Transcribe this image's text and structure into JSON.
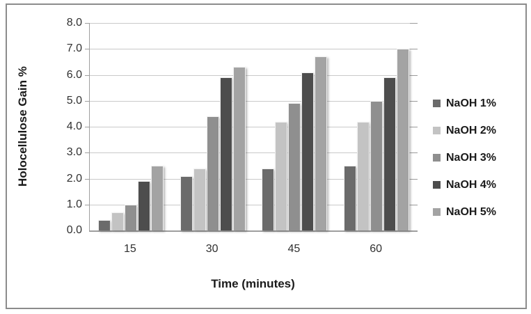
{
  "chart_data": {
    "type": "bar",
    "title": "",
    "categories": [
      "15",
      "30",
      "45",
      "60"
    ],
    "series": [
      {
        "name": "NaOH 1%",
        "color": "#6B6B6B",
        "values": [
          0.4,
          2.1,
          2.4,
          2.5
        ]
      },
      {
        "name": "NaOH 2%",
        "color": "#C3C3C3",
        "values": [
          0.7,
          2.4,
          4.2,
          4.2
        ]
      },
      {
        "name": "NaOH 3%",
        "color": "#8F8F8F",
        "values": [
          1.0,
          4.4,
          4.9,
          5.0
        ]
      },
      {
        "name": "NaOH 4%",
        "color": "#4D4D4D",
        "values": [
          1.9,
          5.9,
          6.1,
          5.9
        ]
      },
      {
        "name": "NaOH 5%",
        "color": "#A3A3A3",
        "values": [
          2.5,
          6.3,
          6.7,
          7.0
        ]
      }
    ],
    "xlabel": "Time (minutes)",
    "ylabel": "Holocellulose Gain %",
    "ylim": [
      0,
      8
    ],
    "ytick_step": 1,
    "ytick_labels": [
      "0.0",
      "1.0",
      "2.0",
      "3.0",
      "4.0",
      "5.0",
      "6.0",
      "7.0",
      "8.0"
    ],
    "grid": true,
    "grid_color": "#C9C9C9",
    "axis_color": "#9E9E9E",
    "legend_position": "right",
    "frame_border_color": "#8C8C8C"
  }
}
